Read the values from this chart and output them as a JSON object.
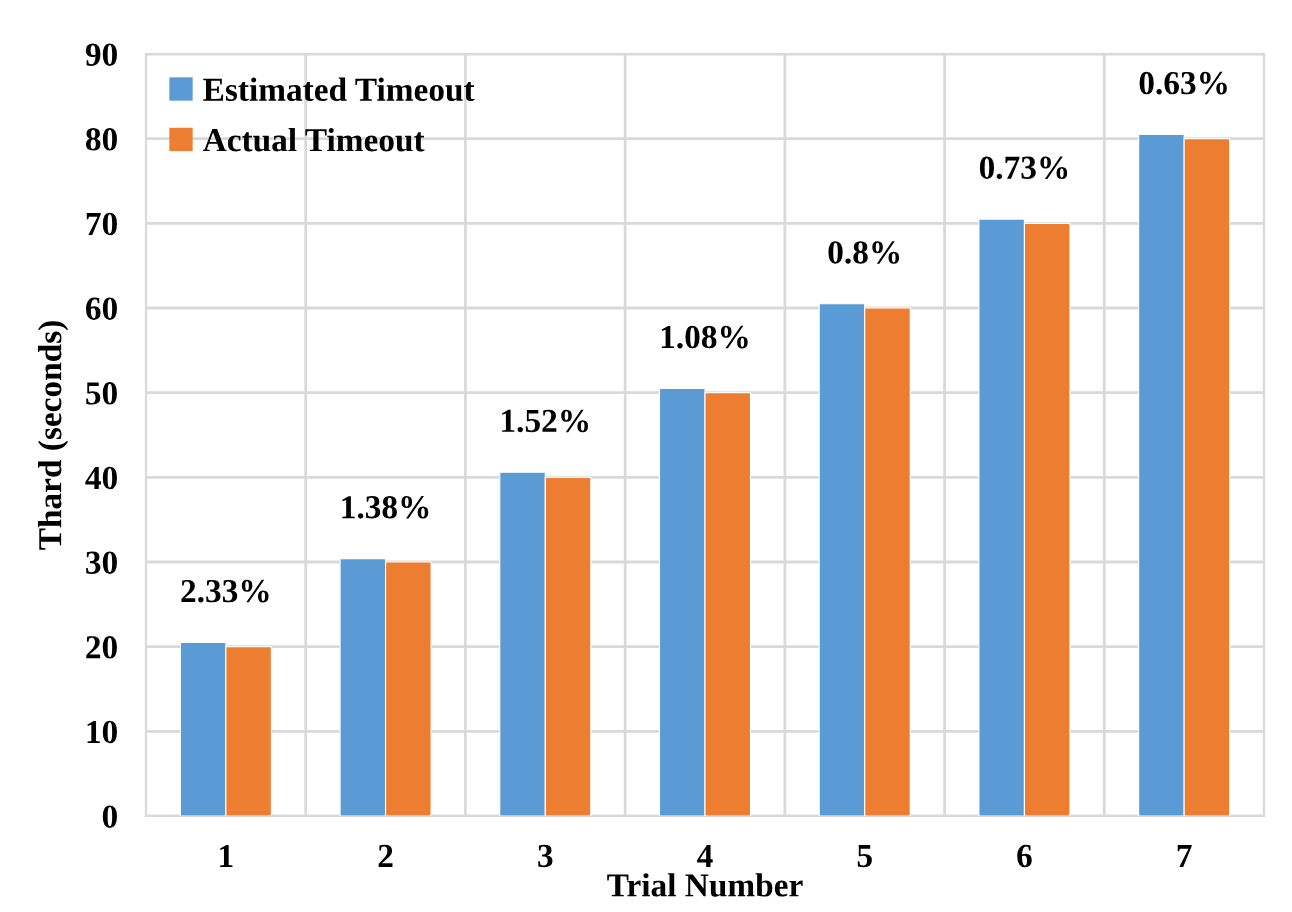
{
  "chart_data": {
    "type": "bar",
    "xlabel": "Trial Number",
    "ylabel": "Thard (seconds)",
    "categories": [
      "1",
      "2",
      "3",
      "4",
      "5",
      "6",
      "7"
    ],
    "series": [
      {
        "name": "Estimated Timeout",
        "color": "#5b9bd5",
        "values": [
          20.5,
          30.4,
          40.6,
          50.5,
          60.5,
          70.5,
          80.5
        ]
      },
      {
        "name": "Actual Timeout",
        "color": "#ed7d31",
        "values": [
          20,
          30,
          40,
          50,
          60,
          70,
          80
        ]
      }
    ],
    "ylim": [
      0,
      90
    ],
    "yticks": [
      0,
      10,
      20,
      30,
      40,
      50,
      60,
      70,
      80,
      90
    ],
    "grid": true,
    "legend": "top left",
    "annotations": [
      {
        "text": "2.33%",
        "x": "1",
        "y": 20.5
      },
      {
        "text": "1.38%",
        "x": "2",
        "y": 30.4
      },
      {
        "text": "1.52%",
        "x": "3",
        "y": 40.6
      },
      {
        "text": "1.08%",
        "x": "4",
        "y": 50.5
      },
      {
        "text": "0.8%",
        "x": "5",
        "y": 60.5
      },
      {
        "text": "0.73%",
        "x": "6",
        "y": 70.5
      },
      {
        "text": "0.63%",
        "x": "7",
        "y": 80.5
      }
    ]
  }
}
